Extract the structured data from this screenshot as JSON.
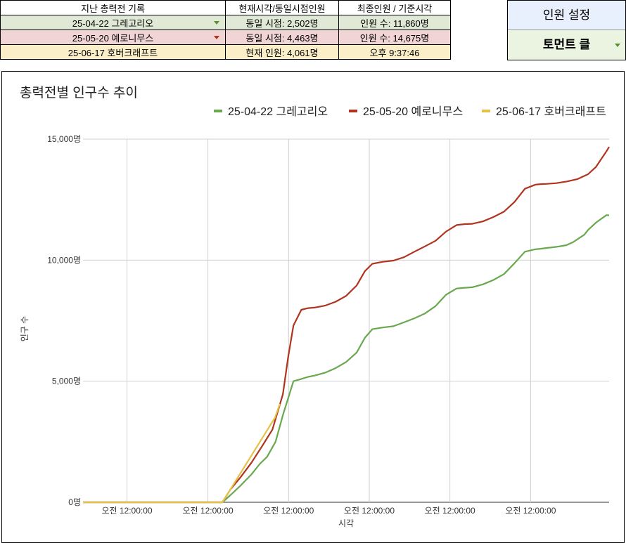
{
  "history_table": {
    "headers": [
      "지난 총력전 기록",
      "현재시각/동일시점인원",
      "최종인원 / 기준시각"
    ],
    "rows": [
      {
        "name": "25-04-22 그레고리오",
        "current": "동일 시점: 2,502명",
        "final": "인원 수: 11,860명",
        "bg": "#dfe9d5",
        "arrow": "#5b8f2e"
      },
      {
        "name": "25-05-20 예로니무스",
        "current": "동일 시점: 4,463명",
        "final": "인원 수: 14,675명",
        "bg": "#f1d4d4",
        "arrow": "#b0341f"
      },
      {
        "name": "25-06-17 호버크래프트",
        "current": "현재 인원: 4,061명",
        "final": "오후 9:37:46",
        "bg": "#fbefc9",
        "arrow": ""
      }
    ]
  },
  "settings": {
    "title": "인원 설정",
    "selected": "토먼트 클"
  },
  "chart_data": {
    "type": "line",
    "title": "총력전별 인구수 추이",
    "xlabel": "시각",
    "ylabel": "인구 수",
    "ylim": [
      0,
      15000
    ],
    "xlim": [
      0,
      100
    ],
    "yticks": [
      0,
      5000,
      10000,
      15000
    ],
    "ytick_labels": [
      "0명",
      "5,000명",
      "10,000명",
      "15,000명"
    ],
    "xticks": [
      8.36,
      23.74,
      39.08,
      54.41,
      69.74,
      85.08
    ],
    "xtick_labels": [
      "오전 12:00:00",
      "오전 12:00:00",
      "오전 12:00:00",
      "오전 12:00:00",
      "오전 12:00:00",
      "오전 12:00:00"
    ],
    "legend_position": "top",
    "series": [
      {
        "name": "25-04-22 그레고리오",
        "color": "#6aa84f",
        "x": [
          0,
          26.5,
          28,
          30,
          32,
          33.6,
          35,
          36.6,
          38,
          40,
          41.3,
          42.8,
          44,
          46,
          48,
          50,
          52,
          53.6,
          55,
          57,
          59,
          61,
          63,
          65,
          67,
          69,
          71,
          72.6,
          74,
          76,
          78,
          80,
          82,
          84,
          86,
          87,
          88,
          90,
          91.9,
          93.2,
          95.3,
          96,
          97.5,
          99.5,
          100
        ],
        "y": [
          0,
          0,
          290,
          700,
          1150,
          1580,
          1880,
          2502,
          3600,
          5000,
          5080,
          5180,
          5230,
          5350,
          5540,
          5790,
          6180,
          6800,
          7150,
          7220,
          7270,
          7430,
          7600,
          7800,
          8100,
          8570,
          8830,
          8860,
          8880,
          9000,
          9180,
          9420,
          9870,
          10350,
          10450,
          10470,
          10500,
          10550,
          10620,
          10750,
          11050,
          11250,
          11550,
          11860,
          11850
        ]
      },
      {
        "name": "25-05-20 예로니무스",
        "color": "#b0341f",
        "x": [
          0,
          26.5,
          28,
          30,
          32,
          34,
          36,
          38,
          39,
          40,
          41.5,
          42.8,
          44,
          46,
          48,
          50,
          52,
          53.6,
          55,
          57,
          59,
          61,
          63,
          65,
          67,
          69,
          71,
          72.6,
          74,
          76,
          78,
          80,
          82,
          84,
          86,
          87,
          88,
          90,
          92,
          94,
          96,
          97.5,
          99.5,
          100
        ],
        "y": [
          0,
          0,
          520,
          1050,
          1630,
          2300,
          3000,
          4463,
          6000,
          7300,
          7950,
          8020,
          8040,
          8120,
          8280,
          8520,
          8950,
          9550,
          9850,
          9930,
          9980,
          10120,
          10350,
          10570,
          10800,
          11180,
          11450,
          11490,
          11500,
          11600,
          11780,
          12000,
          12400,
          12950,
          13120,
          13140,
          13150,
          13180,
          13250,
          13350,
          13550,
          13850,
          14500,
          14675
        ]
      },
      {
        "name": "25-06-17 호버크래프트",
        "color": "#e6c14a",
        "x": [
          0,
          26.5,
          36.5,
          37.4
        ],
        "y": [
          0,
          0,
          3500,
          4061
        ]
      }
    ]
  }
}
